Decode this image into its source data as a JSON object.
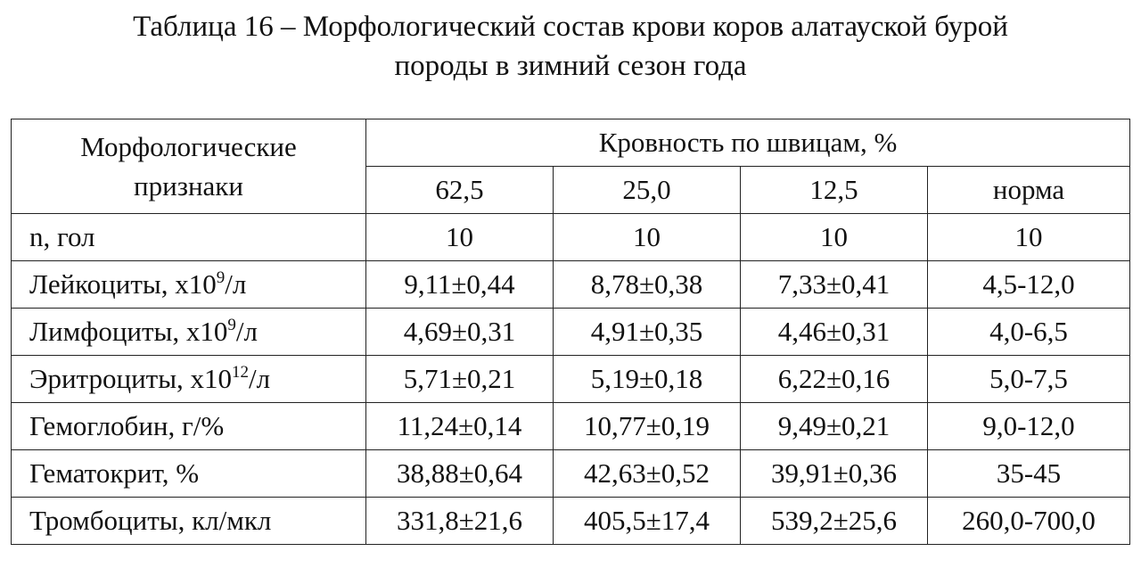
{
  "title": {
    "line1": "Таблица 16 – Морфологический состав крови коров алатауской бурой",
    "line2": "породы в зимний сезон года"
  },
  "table": {
    "corner_line1": "Морфологические",
    "corner_line2": "признаки",
    "group_header": "Кровность по швицам, %",
    "columns": [
      "62,5",
      "25,0",
      "12,5",
      "норма"
    ],
    "rows": [
      {
        "label": "n, гол",
        "label_sup": "",
        "label_tail": "",
        "values": [
          "10",
          "10",
          "10",
          "10"
        ]
      },
      {
        "label": "Лейкоциты, х10",
        "label_sup": "9",
        "label_tail": "/л",
        "values": [
          "9,11±0,44",
          "8,78±0,38",
          "7,33±0,41",
          "4,5-12,0"
        ]
      },
      {
        "label": "Лимфоциты, х10",
        "label_sup": "9",
        "label_tail": "/л",
        "values": [
          "4,69±0,31",
          "4,91±0,35",
          "4,46±0,31",
          "4,0-6,5"
        ]
      },
      {
        "label": "Эритроциты, х10",
        "label_sup": "12",
        "label_tail": "/л",
        "values": [
          "5,71±0,21",
          "5,19±0,18",
          "6,22±0,16",
          "5,0-7,5"
        ]
      },
      {
        "label": "Гемоглобин, г/%",
        "label_sup": "",
        "label_tail": "",
        "values": [
          "11,24±0,14",
          "10,77±0,19",
          "9,49±0,21",
          "9,0-12,0"
        ]
      },
      {
        "label": "Гематокрит, %",
        "label_sup": "",
        "label_tail": "",
        "values": [
          "38,88±0,64",
          "42,63±0,52",
          "39,91±0,36",
          "35-45"
        ]
      },
      {
        "label": "Тромбоциты, кл/мкл",
        "label_sup": "",
        "label_tail": "",
        "values": [
          "331,8±21,6",
          "405,5±17,4",
          "539,2±25,6",
          "260,0-700,0"
        ]
      }
    ]
  }
}
